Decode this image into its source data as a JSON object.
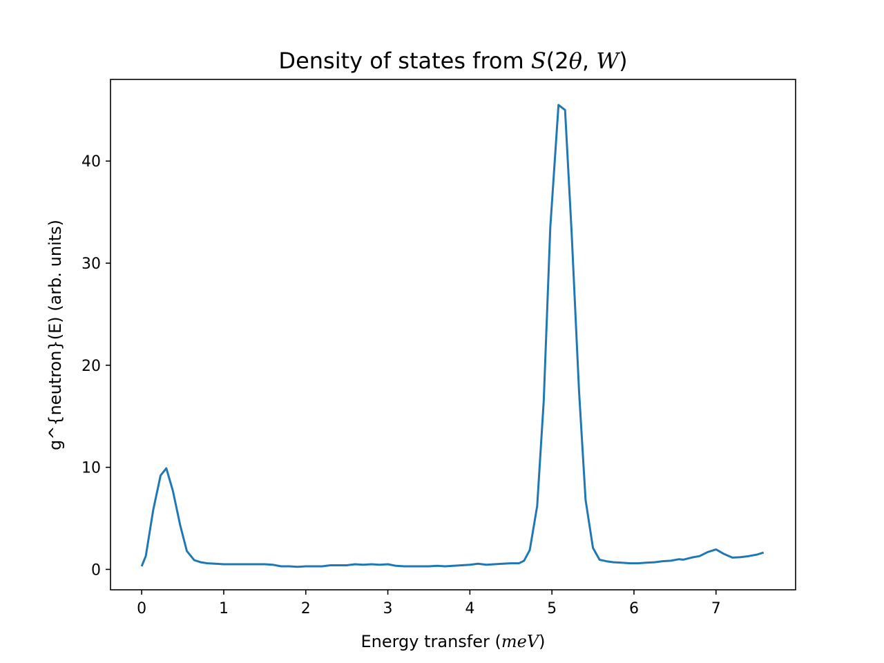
{
  "chart_data": {
    "type": "line",
    "title_prefix": "Density of states from ",
    "title_math": {
      "S": "S",
      "open": "(2",
      "theta": "θ",
      "comma": ", ",
      "W": "W",
      "close": ")"
    },
    "xlabel_prefix": "Energy transfer (",
    "xlabel_unit": "meV",
    "xlabel_suffix": ")",
    "ylabel": "g^{neutron}(E) (arb. units)",
    "xlim": [
      -0.38,
      7.97
    ],
    "ylim": [
      -2.0,
      48.0
    ],
    "xticks": [
      0,
      1,
      2,
      3,
      4,
      5,
      6,
      7
    ],
    "yticks": [
      0,
      10,
      20,
      30,
      40
    ],
    "grid": false,
    "color": "#1f77b4",
    "series": [
      {
        "x": [
          0.0,
          0.05,
          0.14,
          0.23,
          0.3,
          0.38,
          0.47,
          0.55,
          0.64,
          0.72,
          0.8,
          0.9,
          1.0,
          1.1,
          1.2,
          1.3,
          1.4,
          1.5,
          1.6,
          1.7,
          1.8,
          1.9,
          2.0,
          2.1,
          2.2,
          2.3,
          2.4,
          2.5,
          2.6,
          2.7,
          2.8,
          2.9,
          3.0,
          3.1,
          3.2,
          3.3,
          3.4,
          3.5,
          3.6,
          3.7,
          3.8,
          3.9,
          4.0,
          4.1,
          4.2,
          4.3,
          4.4,
          4.5,
          4.6,
          4.66,
          4.73,
          4.82,
          4.9,
          4.98,
          5.08,
          5.16,
          5.24,
          5.33,
          5.41,
          5.5,
          5.58,
          5.66,
          5.75,
          5.85,
          5.95,
          6.05,
          6.15,
          6.25,
          6.35,
          6.45,
          6.55,
          6.6,
          6.7,
          6.8,
          6.9,
          7.0,
          7.1,
          7.2,
          7.3,
          7.4,
          7.5,
          7.58
        ],
        "y": [
          0.3,
          1.3,
          5.8,
          9.2,
          9.9,
          7.7,
          4.3,
          1.8,
          0.9,
          0.7,
          0.6,
          0.55,
          0.5,
          0.5,
          0.5,
          0.5,
          0.5,
          0.5,
          0.45,
          0.3,
          0.3,
          0.25,
          0.3,
          0.3,
          0.3,
          0.4,
          0.4,
          0.4,
          0.5,
          0.45,
          0.5,
          0.45,
          0.5,
          0.35,
          0.3,
          0.3,
          0.3,
          0.3,
          0.35,
          0.3,
          0.35,
          0.4,
          0.45,
          0.55,
          0.45,
          0.5,
          0.55,
          0.6,
          0.6,
          0.85,
          1.9,
          6.2,
          16.5,
          33.5,
          45.5,
          45.0,
          33.0,
          17.5,
          6.8,
          2.1,
          0.95,
          0.8,
          0.7,
          0.65,
          0.6,
          0.6,
          0.65,
          0.7,
          0.8,
          0.85,
          1.0,
          0.95,
          1.15,
          1.3,
          1.7,
          1.95,
          1.5,
          1.15,
          1.2,
          1.3,
          1.45,
          1.65
        ]
      }
    ]
  }
}
